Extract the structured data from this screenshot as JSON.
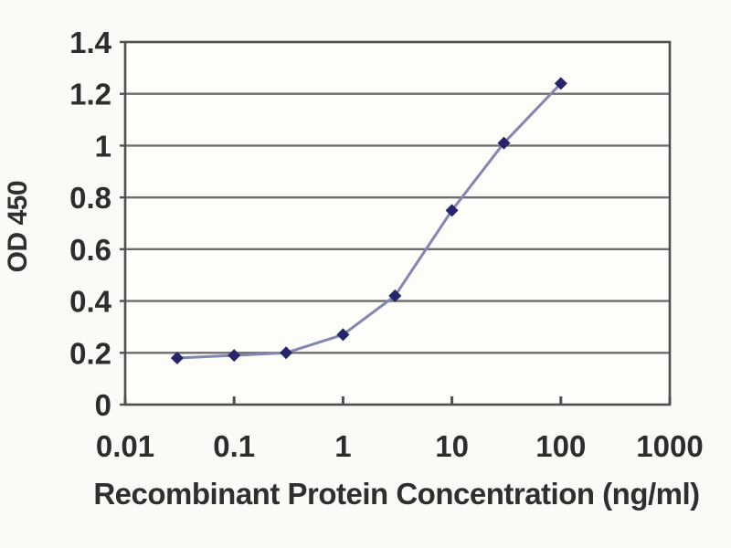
{
  "figure": {
    "background_color": "#fbfaf7",
    "plot_background_color": "#fdfdfa"
  },
  "chart_data": {
    "type": "line",
    "title": "",
    "xlabel": "Recombinant Protein Concentration (ng/ml)",
    "ylabel": "OD 450",
    "x_scale": "log",
    "xlim": [
      0.01,
      1000
    ],
    "ylim": [
      0,
      1.4
    ],
    "x_tick_labels": [
      "0.01",
      "0.1",
      "1",
      "10",
      "100",
      "1000"
    ],
    "x_tick_values": [
      0.01,
      0.1,
      1,
      10,
      100,
      1000
    ],
    "y_tick_labels": [
      "0",
      "0.2",
      "0.4",
      "0.6",
      "0.8",
      "1",
      "1.2",
      "1.4"
    ],
    "y_tick_values": [
      0,
      0.2,
      0.4,
      0.6,
      0.8,
      1,
      1.2,
      1.4
    ],
    "grid": "horizontal",
    "legend": "none",
    "series": [
      {
        "name": "OD 450 vs concentration",
        "x": [
          0.03,
          0.1,
          0.3,
          1,
          3,
          10,
          30,
          100
        ],
        "y": [
          0.18,
          0.19,
          0.2,
          0.27,
          0.42,
          0.75,
          1.01,
          1.24
        ],
        "marker": "diamond",
        "marker_color": "#26256b",
        "line_color": "#8486b2"
      }
    ],
    "frame_color": "#4f4f4f",
    "grid_color": "#6d6d6d",
    "tick_text_color": "#2d2d2d"
  }
}
